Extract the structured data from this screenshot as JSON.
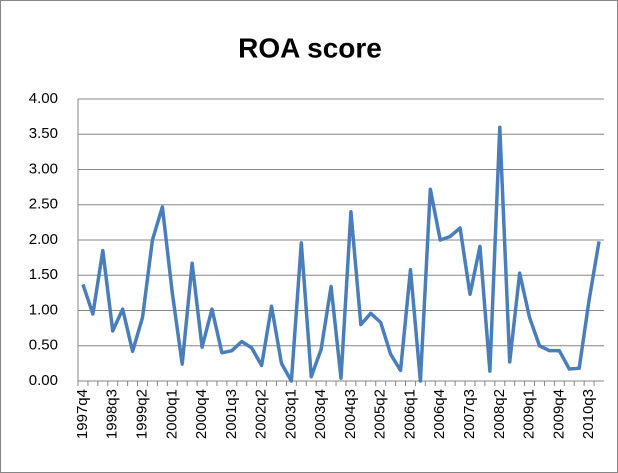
{
  "chart_data": {
    "type": "line",
    "title": "ROA score",
    "categories": [
      "1997q4",
      null,
      null,
      "1998q3",
      null,
      null,
      "1999q2",
      null,
      null,
      "2000q1",
      null,
      null,
      "2000q4",
      null,
      null,
      "2001q3",
      null,
      null,
      "2002q2",
      null,
      null,
      "2003q1",
      null,
      null,
      "2003q4",
      null,
      null,
      "2004q3",
      null,
      null,
      "2005q2",
      null,
      null,
      "2006q1",
      null,
      null,
      "2006q4",
      null,
      null,
      "2007q3",
      null,
      null,
      "2008q2",
      null,
      null,
      "2009q1",
      null,
      null,
      "2009q4",
      null,
      null,
      "2010q3",
      null
    ],
    "values": [
      1.37,
      0.95,
      1.85,
      0.71,
      1.02,
      0.42,
      0.9,
      2.0,
      2.47,
      1.25,
      0.24,
      1.67,
      0.48,
      1.02,
      0.4,
      0.43,
      0.56,
      0.47,
      0.22,
      1.06,
      0.25,
      0.0,
      1.96,
      0.06,
      0.45,
      1.34,
      0.04,
      2.4,
      0.8,
      0.96,
      0.83,
      0.38,
      0.15,
      1.58,
      0.0,
      2.72,
      2.0,
      2.05,
      2.17,
      1.23,
      1.91,
      0.14,
      3.6,
      0.27,
      1.53,
      0.9,
      0.5,
      0.43,
      0.43,
      0.17,
      0.18,
      1.15,
      1.98
    ],
    "color": "#4a7ebb",
    "ylim": [
      0,
      4
    ],
    "yticks": [
      {
        "value": 0,
        "label": "0.00"
      },
      {
        "value": 0.5,
        "label": "0.50"
      },
      {
        "value": 1,
        "label": "1.00"
      },
      {
        "value": 1.5,
        "label": "1.50"
      },
      {
        "value": 2,
        "label": "2.00"
      },
      {
        "value": 2.5,
        "label": "2.50"
      },
      {
        "value": 3,
        "label": "3.00"
      },
      {
        "value": 3.5,
        "label": "3.50"
      },
      {
        "value": 4,
        "label": "4.00"
      }
    ],
    "grid": true
  }
}
